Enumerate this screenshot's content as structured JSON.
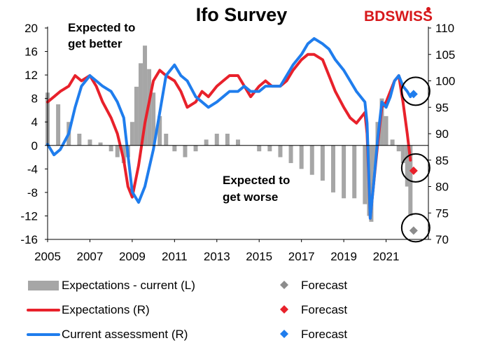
{
  "brand": {
    "logo_text": "BDSWISS",
    "logo_color": "#d7191c"
  },
  "chart_data": {
    "type": "line",
    "title": "Ifo Survey",
    "x_ticks": [
      "2005",
      "2007",
      "2009",
      "2011",
      "2013",
      "2015",
      "2017",
      "2019",
      "2021"
    ],
    "left_axis": {
      "ylim": [
        -16,
        20
      ],
      "ticks": [
        "20",
        "16",
        "12",
        "8",
        "4",
        "0",
        "-4",
        "-8",
        "-12",
        "-16"
      ]
    },
    "right_axis": {
      "ylim": [
        70,
        110
      ],
      "ticks": [
        "110",
        "105",
        "100",
        "95",
        "90",
        "85",
        "80",
        "75",
        "70"
      ]
    },
    "x_range": [
      2005.0,
      2023.0
    ],
    "annotations": [
      "Expected to get better",
      "Expected to get worse"
    ],
    "colors": {
      "bars": "#a6a6a6",
      "expectations": "#e8212b",
      "current": "#1f7ded",
      "forecast_bars": "#8c8c8c",
      "circle": "#000000"
    },
    "series": [
      {
        "name": "Expectations - current (L)",
        "axis": "left",
        "kind": "bar",
        "x": [
          2005.0,
          2005.5,
          2006.0,
          2006.5,
          2007.0,
          2007.5,
          2008.0,
          2008.3,
          2008.6,
          2008.8,
          2009.0,
          2009.2,
          2009.4,
          2009.6,
          2009.8,
          2010.0,
          2010.3,
          2010.6,
          2011.0,
          2011.5,
          2012.0,
          2012.5,
          2013.0,
          2013.5,
          2014.0,
          2014.5,
          2015.0,
          2015.5,
          2016.0,
          2016.5,
          2017.0,
          2017.5,
          2018.0,
          2018.5,
          2019.0,
          2019.5,
          2020.0,
          2020.2,
          2020.3,
          2020.4,
          2020.6,
          2020.8,
          2021.0,
          2021.3,
          2021.6,
          2021.8,
          2022.0,
          2022.15
        ],
        "values": [
          9,
          7,
          4,
          2,
          1,
          0.5,
          -1,
          -2,
          -3,
          -2,
          4,
          10,
          14,
          17,
          13,
          9,
          5,
          2,
          -1,
          -2,
          -1,
          1,
          2,
          2,
          1,
          0,
          -1,
          -1,
          -2,
          -3,
          -4,
          -5,
          -6,
          -8,
          -9,
          -9,
          -10,
          -12,
          -13,
          -4,
          4,
          8,
          5,
          1,
          -1,
          -3,
          -7,
          -12
        ],
        "forecast": {
          "x": 2022.3,
          "value": -14.5
        }
      },
      {
        "name": "Expectations (R)",
        "axis": "right",
        "kind": "line",
        "x": [
          2005.0,
          2005.3,
          2005.6,
          2006.0,
          2006.3,
          2006.6,
          2007.0,
          2007.3,
          2007.6,
          2008.0,
          2008.3,
          2008.6,
          2008.8,
          2009.0,
          2009.3,
          2009.6,
          2010.0,
          2010.3,
          2010.6,
          2011.0,
          2011.3,
          2011.6,
          2012.0,
          2012.3,
          2012.6,
          2013.0,
          2013.3,
          2013.6,
          2014.0,
          2014.3,
          2014.6,
          2015.0,
          2015.3,
          2015.6,
          2016.0,
          2016.3,
          2016.6,
          2017.0,
          2017.3,
          2017.6,
          2018.0,
          2018.3,
          2018.6,
          2019.0,
          2019.3,
          2019.6,
          2020.0,
          2020.1,
          2020.25,
          2020.4,
          2020.6,
          2020.8,
          2021.0,
          2021.2,
          2021.4,
          2021.6,
          2021.8,
          2022.0,
          2022.15
        ],
        "values": [
          96,
          97,
          98,
          99,
          101,
          100,
          101,
          99,
          96,
          93,
          90,
          85,
          80,
          78,
          84,
          92,
          100,
          102,
          101,
          100,
          98,
          95,
          96,
          98,
          97,
          99,
          100,
          101,
          101,
          99,
          97,
          99,
          100,
          99,
          99,
          100,
          102,
          104,
          105,
          105,
          104,
          101,
          98,
          95,
          93,
          92,
          94,
          90,
          74,
          80,
          88,
          95,
          96,
          98,
          100,
          101,
          96,
          90,
          85
        ],
        "forecast": {
          "x": 2022.3,
          "value": 83
        }
      },
      {
        "name": "Current assessment (R)",
        "axis": "right",
        "kind": "line",
        "x": [
          2005.0,
          2005.3,
          2005.6,
          2006.0,
          2006.3,
          2006.6,
          2007.0,
          2007.3,
          2007.6,
          2008.0,
          2008.3,
          2008.6,
          2008.8,
          2009.0,
          2009.3,
          2009.6,
          2010.0,
          2010.3,
          2010.6,
          2011.0,
          2011.3,
          2011.6,
          2012.0,
          2012.3,
          2012.6,
          2013.0,
          2013.3,
          2013.6,
          2014.0,
          2014.3,
          2014.6,
          2015.0,
          2015.3,
          2015.6,
          2016.0,
          2016.3,
          2016.6,
          2017.0,
          2017.3,
          2017.6,
          2018.0,
          2018.3,
          2018.6,
          2019.0,
          2019.3,
          2019.6,
          2020.0,
          2020.1,
          2020.25,
          2020.4,
          2020.6,
          2020.8,
          2021.0,
          2021.2,
          2021.4,
          2021.6,
          2021.8,
          2022.0,
          2022.15
        ],
        "values": [
          88,
          86,
          87,
          90,
          95,
          99,
          101,
          100,
          99,
          98,
          96,
          93,
          86,
          79,
          77,
          80,
          87,
          94,
          101,
          103,
          101,
          100,
          97,
          96,
          95,
          96,
          97,
          98,
          98,
          99,
          98,
          98,
          99,
          99,
          99,
          101,
          103,
          105,
          107,
          108,
          107,
          106,
          104,
          102,
          100,
          98,
          96,
          92,
          74,
          80,
          89,
          96,
          95,
          97,
          100,
          101,
          99,
          98,
          97
        ],
        "forecast": {
          "x": 2022.3,
          "value": 97.5
        }
      }
    ],
    "legend": [
      {
        "label": "Expectations - current (L)",
        "kind": "bar",
        "color": "#a6a6a6"
      },
      {
        "label": "Forecast",
        "kind": "diamond",
        "color": "#8c8c8c"
      },
      {
        "label": "Expectations (R)",
        "kind": "line",
        "color": "#e8212b"
      },
      {
        "label": "Forecast",
        "kind": "diamond",
        "color": "#e8212b"
      },
      {
        "label": "Current assessment (R)",
        "kind": "line",
        "color": "#1f7ded"
      },
      {
        "label": "Forecast",
        "kind": "diamond",
        "color": "#1f7ded"
      }
    ],
    "legend_position": "bottom"
  }
}
